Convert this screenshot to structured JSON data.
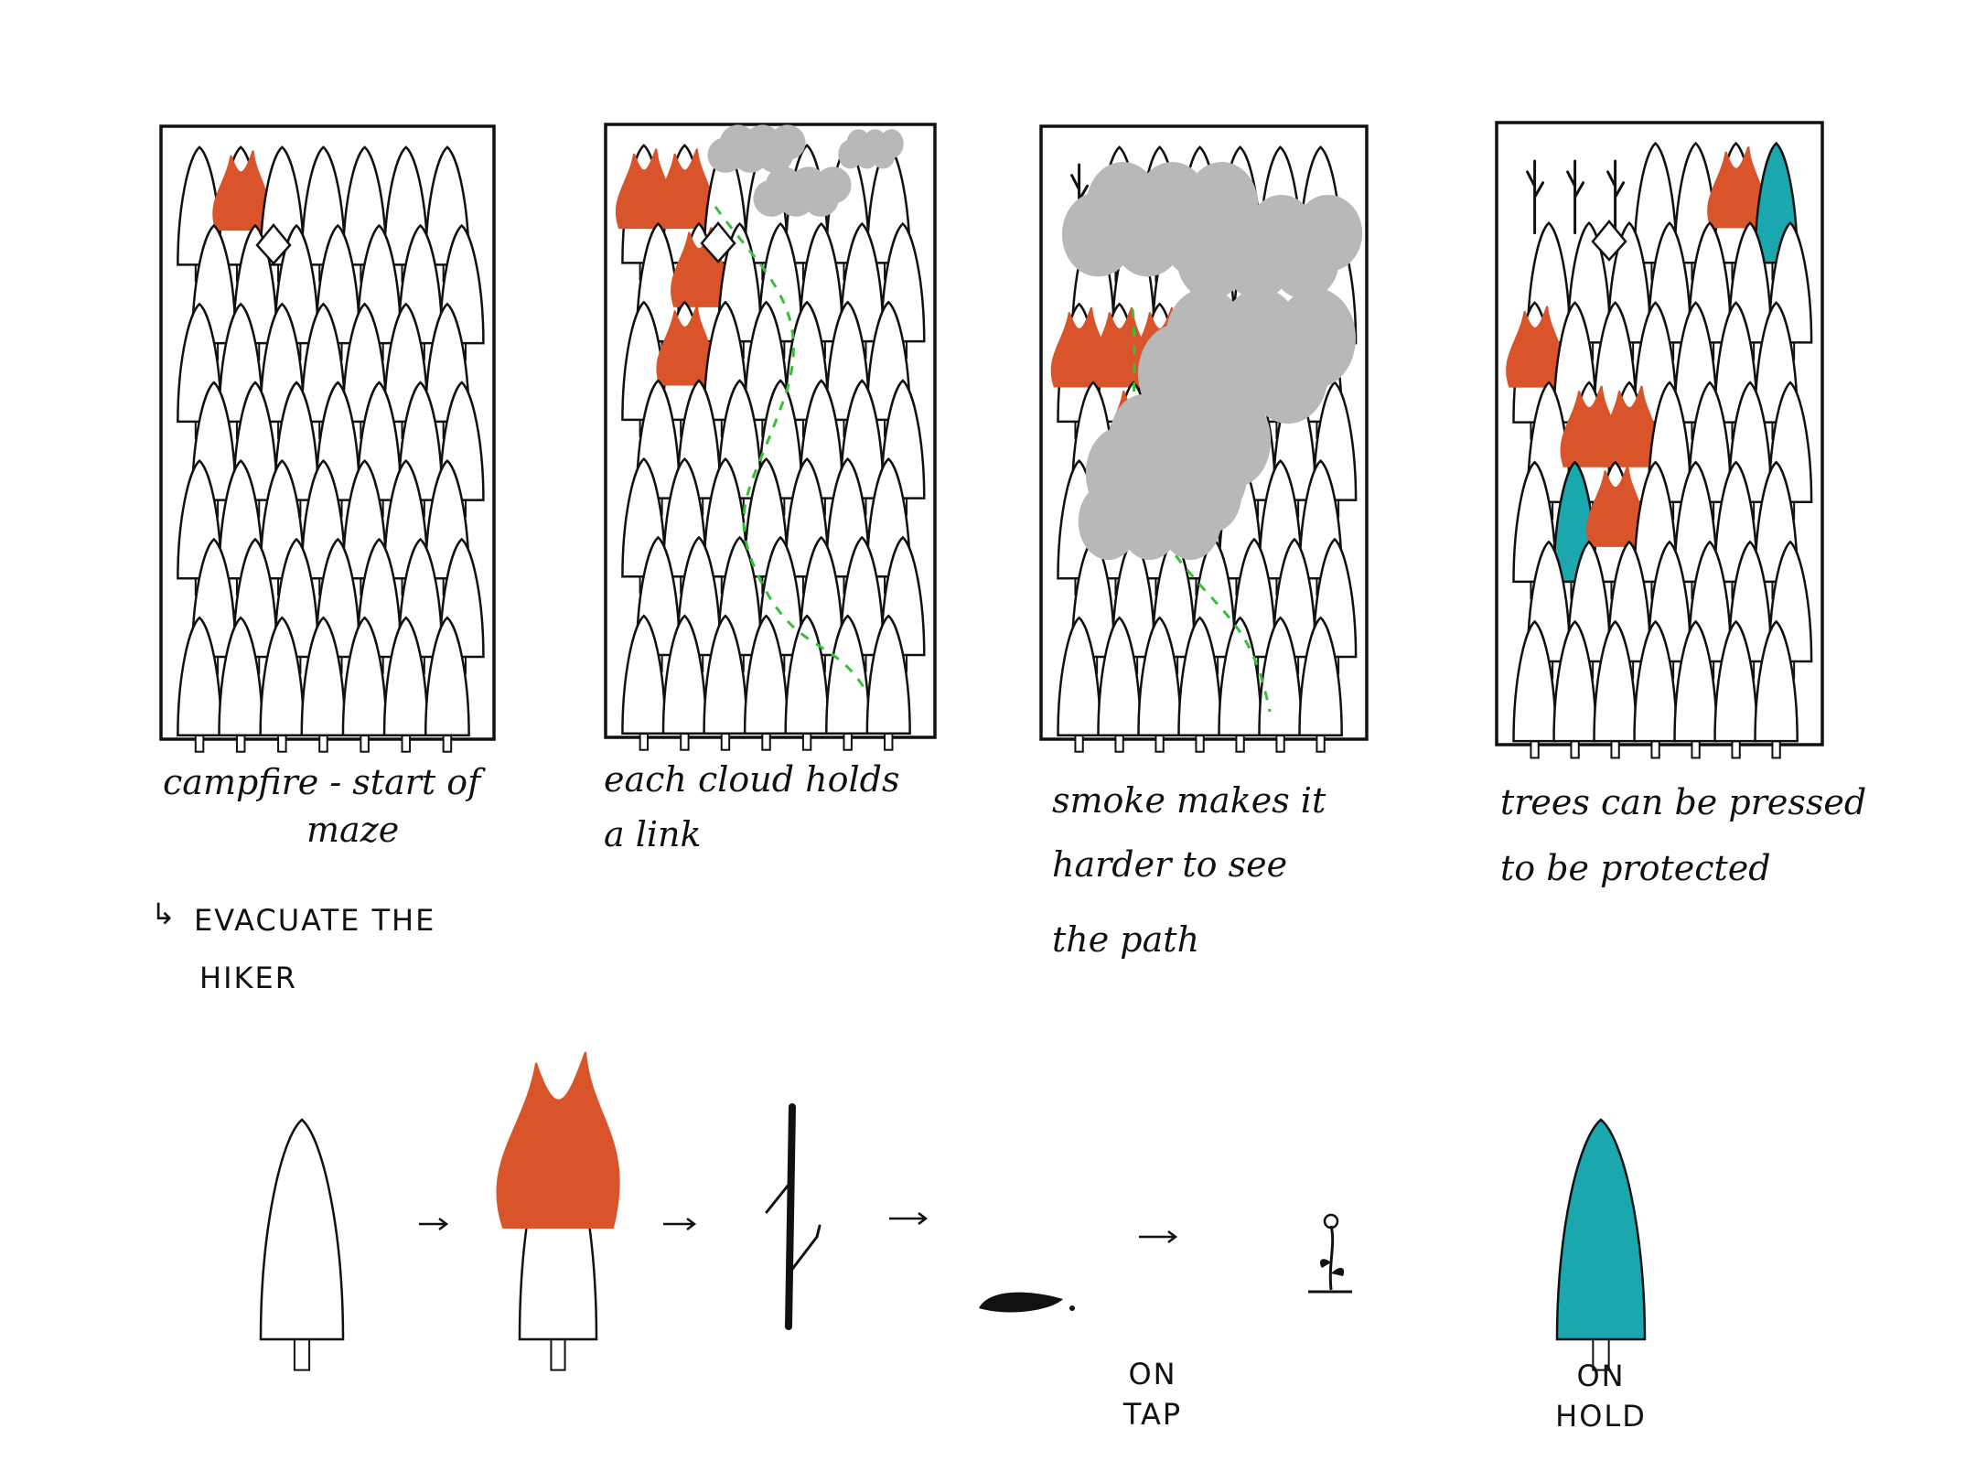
{
  "panels": [
    {
      "caption_line1": "campfire - start of",
      "caption_line2": "maze",
      "note_line1": "EVACUATE THE",
      "note_line2": "HIKER"
    },
    {
      "caption_line1": "each cloud holds",
      "caption_line2": "a link"
    },
    {
      "caption_line1": "smoke makes it",
      "caption_line2": "harder to see",
      "caption_line3": "the path"
    },
    {
      "caption_line1": "trees can be pressed",
      "caption_line2": "to be protected"
    }
  ],
  "lifecycle": {
    "stages": [
      "tree",
      "burning-tree",
      "burnt-trunk",
      "ash",
      "sprout"
    ],
    "tap_label_line1": "ON",
    "tap_label_line2": "TAP",
    "hold_label_line1": "ON",
    "hold_label_line2": "HOLD"
  },
  "colors": {
    "ink": "#111111",
    "fire": "#d9542a",
    "smoke": "#b8b8b8",
    "protected": "#1aa8ae",
    "path": "#35c035"
  }
}
